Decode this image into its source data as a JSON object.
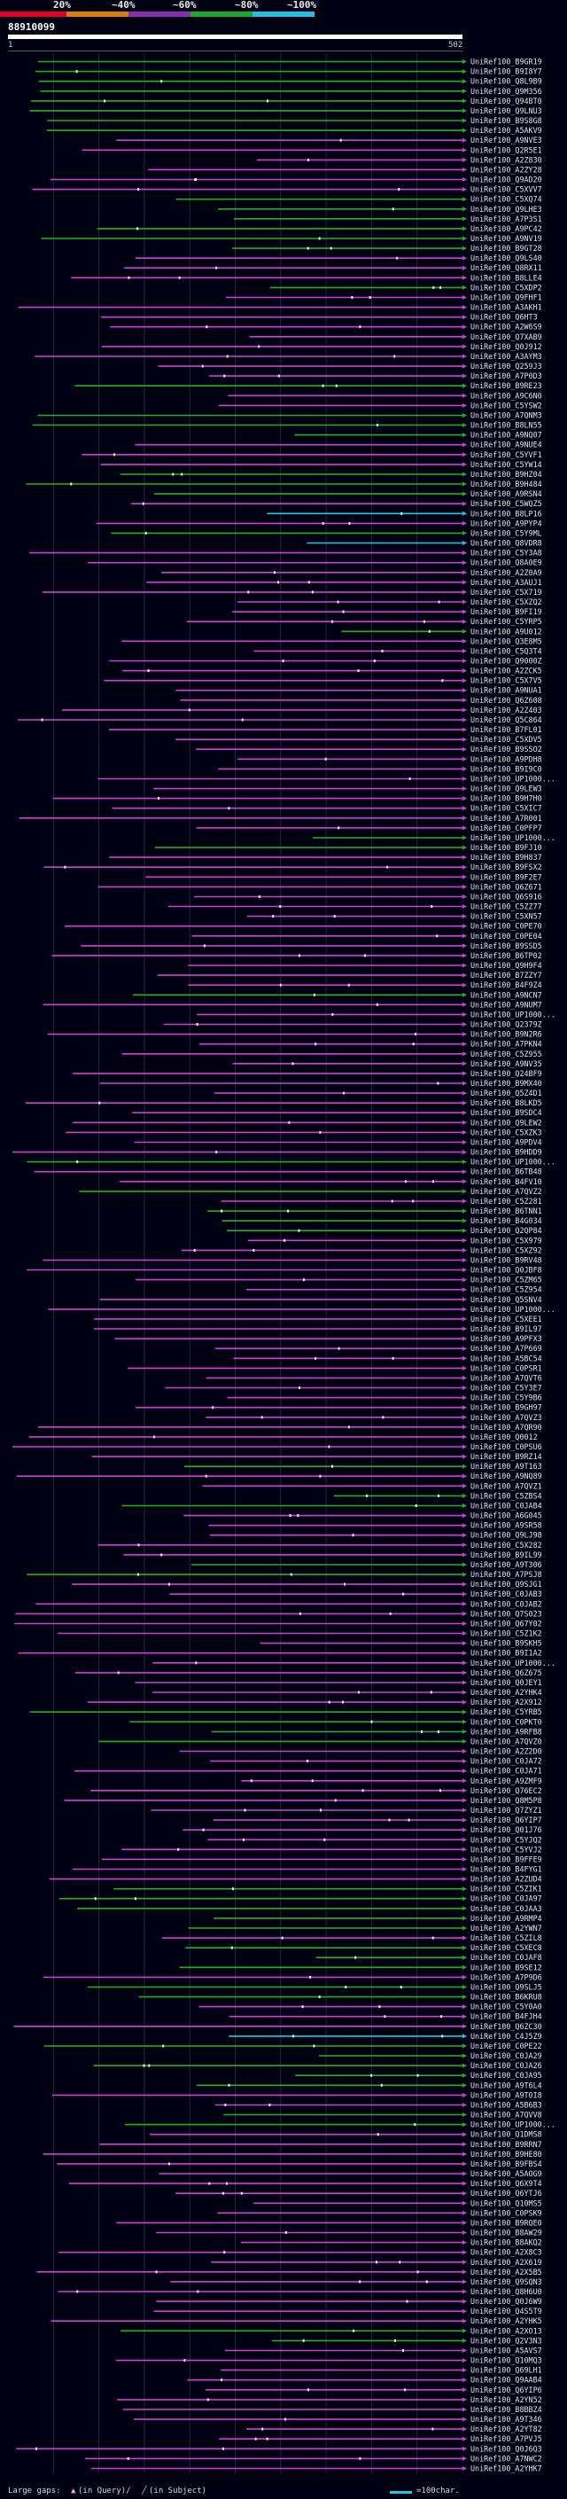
{
  "legend": {
    "labels": [
      "20%",
      "~40%",
      "~60%",
      "~80%",
      "~100%"
    ],
    "colors": [
      "#e0002a",
      "#e07a10",
      "#8a2bb0",
      "#1aa82a",
      "#22c0e0"
    ]
  },
  "query": {
    "id": "88910099",
    "range_start": "1",
    "range_end": "502"
  },
  "colors": {
    "magenta": "#d040d0",
    "green": "#22b022",
    "cyan": "#22c8e0",
    "dot": "#f0f0f0",
    "grid": "#262640"
  },
  "hits": [
    {
      "label": "UniRef100_B9GR19",
      "color": "green"
    },
    {
      "label": "UniRef100_B9I8Y7",
      "color": "green"
    },
    {
      "label": "UniRef100_Q8L9B9",
      "color": "green"
    },
    {
      "label": "UniRef100_Q9M356",
      "color": "green"
    },
    {
      "label": "UniRef100_Q94BT0",
      "color": "green"
    },
    {
      "label": "UniRef100_Q9LNU3",
      "color": "green"
    },
    {
      "label": "UniRef100_B9S8G8",
      "color": "green"
    },
    {
      "label": "UniRef100_A5AKV9",
      "color": "green"
    },
    {
      "label": "UniRef100_A9NVE3",
      "color": "magenta"
    },
    {
      "label": "UniRef100_Q2R5E1",
      "color": "magenta"
    },
    {
      "label": "UniRef100_A2Z830",
      "color": "magenta"
    },
    {
      "label": "UniRef100_A2ZY28",
      "color": "magenta"
    },
    {
      "label": "UniRef100_Q9AD20",
      "color": "magenta"
    },
    {
      "label": "UniRef100_C5XVV7",
      "color": "magenta"
    },
    {
      "label": "UniRef100_C5XQ74",
      "color": "green"
    },
    {
      "label": "UniRef100_Q9LHE3",
      "color": "green"
    },
    {
      "label": "UniRef100_A7P3S1",
      "color": "green"
    },
    {
      "label": "UniRef100_A9PC42",
      "color": "green"
    },
    {
      "label": "UniRef100_A9NV19",
      "color": "green"
    },
    {
      "label": "UniRef100_B9GT28",
      "color": "green"
    },
    {
      "label": "UniRef100_Q9LS40",
      "color": "magenta"
    },
    {
      "label": "UniRef100_Q8RX11",
      "color": "magenta"
    },
    {
      "label": "UniRef100_B8LLE4",
      "color": "magenta"
    },
    {
      "label": "UniRef100_C5XDP2",
      "color": "green"
    },
    {
      "label": "UniRef100_Q9FHF1",
      "color": "magenta"
    },
    {
      "label": "UniRef100_A3AKH1",
      "color": "magenta"
    },
    {
      "label": "UniRef100_Q6HT3",
      "color": "magenta"
    },
    {
      "label": "UniRef100_A2W6S9",
      "color": "magenta"
    },
    {
      "label": "UniRef100_Q7XAB9",
      "color": "magenta"
    },
    {
      "label": "UniRef100_Q0J912",
      "color": "magenta"
    },
    {
      "label": "UniRef100_A3AYM3",
      "color": "magenta"
    },
    {
      "label": "UniRef100_Q259J3",
      "color": "magenta"
    },
    {
      "label": "UniRef100_A7P0D3",
      "color": "magenta"
    },
    {
      "label": "UniRef100_B9RE23",
      "color": "green"
    },
    {
      "label": "UniRef100_A9C6N0",
      "color": "magenta"
    },
    {
      "label": "UniRef100_C5YSW2",
      "color": "magenta"
    },
    {
      "label": "UniRef100_A7QNM3",
      "color": "green"
    },
    {
      "label": "UniRef100_B8LN55",
      "color": "green"
    },
    {
      "label": "UniRef100_A9NQ07",
      "color": "green"
    },
    {
      "label": "UniRef100_A9NUE4",
      "color": "magenta"
    },
    {
      "label": "UniRef100_C5YVF1",
      "color": "magenta"
    },
    {
      "label": "UniRef100_C5YW14",
      "color": "magenta"
    },
    {
      "label": "UniRef100_B9HZ04",
      "color": "green"
    },
    {
      "label": "UniRef100_B9H484",
      "color": "green"
    },
    {
      "label": "UniRef100_A9RSN4",
      "color": "green"
    },
    {
      "label": "UniRef100_C5WQZ5",
      "color": "magenta"
    },
    {
      "label": "UniRef100_B8LP16",
      "color": "cyan"
    },
    {
      "label": "UniRef100_A9PYP4",
      "color": "magenta"
    },
    {
      "label": "UniRef100_C5Y9ML",
      "color": "green"
    },
    {
      "label": "UniRef100_Q8VDR8",
      "color": "cyan"
    },
    {
      "label": "UniRef100_C5Y3A8",
      "color": "magenta"
    },
    {
      "label": "UniRef100_Q8A0E9",
      "color": "magenta"
    },
    {
      "label": "UniRef100_A2Z0A9",
      "color": "magenta"
    },
    {
      "label": "UniRef100_A3AUJ1",
      "color": "magenta"
    },
    {
      "label": "UniRef100_C5X719",
      "color": "magenta"
    },
    {
      "label": "UniRef100_C5XZQ2",
      "color": "magenta"
    },
    {
      "label": "UniRef100_B9FI19",
      "color": "magenta"
    },
    {
      "label": "UniRef100_C5YRP5",
      "color": "magenta"
    },
    {
      "label": "UniRef100_A9U012",
      "color": "green"
    },
    {
      "label": "UniRef100_Q3E8M5",
      "color": "magenta"
    },
    {
      "label": "UniRef100_C5Q3T4",
      "color": "magenta"
    },
    {
      "label": "UniRef100_Q9000Z",
      "color": "magenta"
    },
    {
      "label": "UniRef100_A2ZCK5",
      "color": "magenta"
    },
    {
      "label": "UniRef100_C5X7V5",
      "color": "magenta"
    },
    {
      "label": "UniRef100_A9NUA1",
      "color": "magenta"
    },
    {
      "label": "UniRef100_Q6Z608",
      "color": "magenta"
    },
    {
      "label": "UniRef100_A2Z403",
      "color": "magenta"
    },
    {
      "label": "UniRef100_Q5C864",
      "color": "magenta"
    },
    {
      "label": "UniRef100_B7FL01",
      "color": "magenta"
    },
    {
      "label": "UniRef100_C5XDV5",
      "color": "magenta"
    },
    {
      "label": "UniRef100_B9SSO2",
      "color": "magenta"
    },
    {
      "label": "UniRef100_A9PDH8",
      "color": "magenta"
    },
    {
      "label": "UniRef100_B9I9C0",
      "color": "magenta"
    },
    {
      "label": "UniRef100_UP1000...",
      "color": "magenta"
    },
    {
      "label": "UniRef100_Q9LEW3",
      "color": "magenta"
    },
    {
      "label": "UniRef100_B9H7H0",
      "color": "magenta"
    },
    {
      "label": "UniRef100_C5XIC7",
      "color": "magenta"
    },
    {
      "label": "UniRef100_A7R001",
      "color": "magenta"
    },
    {
      "label": "UniRef100_C0PFP7",
      "color": "magenta"
    },
    {
      "label": "UniRef100_UP1000...",
      "color": "green"
    },
    {
      "label": "UniRef100_B9FJ10",
      "color": "green"
    },
    {
      "label": "UniRef100_B9H837",
      "color": "magenta"
    },
    {
      "label": "UniRef100_B9FSX2",
      "color": "magenta"
    },
    {
      "label": "UniRef100_B9F2E7",
      "color": "magenta"
    },
    {
      "label": "UniRef100_Q6Z671",
      "color": "magenta"
    },
    {
      "label": "UniRef100_Q6S916",
      "color": "magenta"
    },
    {
      "label": "UniRef100_C5ZZ77",
      "color": "magenta"
    },
    {
      "label": "UniRef100_C5XN57",
      "color": "magenta"
    },
    {
      "label": "UniRef100_C0PE70",
      "color": "magenta"
    },
    {
      "label": "UniRef100_C0PE04",
      "color": "magenta"
    },
    {
      "label": "UniRef100_B9SSD5",
      "color": "magenta"
    },
    {
      "label": "UniRef100_B6TP02",
      "color": "magenta"
    },
    {
      "label": "UniRef100_Q9H9F4",
      "color": "magenta"
    },
    {
      "label": "UniRef100_B7ZZY7",
      "color": "magenta"
    },
    {
      "label": "UniRef100_B4F9Z4",
      "color": "magenta"
    },
    {
      "label": "UniRef100_A9NCN7",
      "color": "green"
    },
    {
      "label": "UniRef100_A9NUM7",
      "color": "magenta"
    },
    {
      "label": "UniRef100_UP1000...",
      "color": "magenta"
    },
    {
      "label": "UniRef100_Q2379Z",
      "color": "magenta"
    },
    {
      "label": "UniRef100_B9N2R6",
      "color": "magenta"
    },
    {
      "label": "UniRef100_A7PKN4",
      "color": "magenta"
    },
    {
      "label": "UniRef100_C5Z955",
      "color": "magenta"
    },
    {
      "label": "UniRef100_A9NV35",
      "color": "magenta"
    },
    {
      "label": "UniRef100_Q24BF9",
      "color": "magenta"
    },
    {
      "label": "UniRef100_B9MX40",
      "color": "magenta"
    },
    {
      "label": "UniRef100_Q5Z4D1",
      "color": "magenta"
    },
    {
      "label": "UniRef100_B8LKD5",
      "color": "magenta"
    },
    {
      "label": "UniRef100_B9SDC4",
      "color": "magenta"
    },
    {
      "label": "UniRef100_Q9LEW2",
      "color": "magenta"
    },
    {
      "label": "UniRef100_C5XZK3",
      "color": "magenta"
    },
    {
      "label": "UniRef100_A9PDV4",
      "color": "magenta"
    },
    {
      "label": "UniRef100_B9HDD9",
      "color": "magenta"
    },
    {
      "label": "UniRef100_UP1000...",
      "color": "green"
    },
    {
      "label": "UniRef100_B6TB48",
      "color": "magenta"
    },
    {
      "label": "UniRef100_B4FV10",
      "color": "magenta"
    },
    {
      "label": "UniRef100_A7QVZ2",
      "color": "green"
    },
    {
      "label": "UniRef100_C5Z281",
      "color": "magenta"
    },
    {
      "label": "UniRef100_B6TNN1",
      "color": "green"
    },
    {
      "label": "UniRef100_B4G034",
      "color": "green"
    },
    {
      "label": "UniRef100_Q2QP84",
      "color": "green"
    },
    {
      "label": "UniRef100_C5X979",
      "color": "magenta"
    },
    {
      "label": "UniRef100_C5XZ92",
      "color": "magenta"
    },
    {
      "label": "UniRef100_B9RV48",
      "color": "magenta"
    },
    {
      "label": "UniRef100_Q0JBF8",
      "color": "magenta"
    },
    {
      "label": "UniRef100_C5ZM65",
      "color": "magenta"
    },
    {
      "label": "UniRef100_C5Z954",
      "color": "magenta"
    },
    {
      "label": "UniRef100_Q5SNV4",
      "color": "magenta"
    },
    {
      "label": "UniRef100_UP1000...",
      "color": "magenta"
    },
    {
      "label": "UniRef100_C5XEE1",
      "color": "magenta"
    },
    {
      "label": "UniRef100_B9IL97",
      "color": "magenta"
    },
    {
      "label": "UniRef100_A9PFX3",
      "color": "magenta"
    },
    {
      "label": "UniRef100_A7P669",
      "color": "magenta"
    },
    {
      "label": "UniRef100_A5BC54",
      "color": "magenta"
    },
    {
      "label": "UniRef100_C0PSR1",
      "color": "magenta"
    },
    {
      "label": "UniRef100_A7QVT6",
      "color": "magenta"
    },
    {
      "label": "UniRef100_C5Y3E7",
      "color": "magenta"
    },
    {
      "label": "UniRef100_C5Y9B6",
      "color": "magenta"
    },
    {
      "label": "UniRef100_B9GH97",
      "color": "magenta"
    },
    {
      "label": "UniRef100_A7QVZ3",
      "color": "magenta"
    },
    {
      "label": "UniRef100_A7QR90",
      "color": "magenta"
    },
    {
      "label": "UniRef100_Q0012",
      "color": "magenta"
    },
    {
      "label": "UniRef100_C0PSU6",
      "color": "magenta"
    },
    {
      "label": "UniRef100_B9RZ14",
      "color": "magenta"
    },
    {
      "label": "UniRef100_A9T163",
      "color": "green"
    },
    {
      "label": "UniRef100_A9NQ89",
      "color": "magenta"
    },
    {
      "label": "UniRef100_A7QVZ1",
      "color": "magenta"
    },
    {
      "label": "UniRef100_C5ZBS4",
      "color": "green"
    },
    {
      "label": "UniRef100_C0JAB4",
      "color": "green"
    },
    {
      "label": "UniRef100_A6G045",
      "color": "magenta"
    },
    {
      "label": "UniRef100_A9SR58",
      "color": "magenta"
    },
    {
      "label": "UniRef100_Q9LJ98",
      "color": "magenta"
    },
    {
      "label": "UniRef100_C5X282",
      "color": "magenta"
    },
    {
      "label": "UniRef100_B9IL99",
      "color": "magenta"
    },
    {
      "label": "UniRef100_A9T306",
      "color": "green"
    },
    {
      "label": "UniRef100_A7PSJ8",
      "color": "green"
    },
    {
      "label": "UniRef100_Q9SJG1",
      "color": "magenta"
    },
    {
      "label": "UniRef100_C0JAB3",
      "color": "magenta"
    },
    {
      "label": "UniRef100_C0JAB2",
      "color": "magenta"
    },
    {
      "label": "UniRef100_Q7S023",
      "color": "magenta"
    },
    {
      "label": "UniRef100_Q67Y02",
      "color": "magenta"
    },
    {
      "label": "UniRef100_C5Z1K2",
      "color": "magenta"
    },
    {
      "label": "UniRef100_B9SKH5",
      "color": "magenta"
    },
    {
      "label": "UniRef100_B9I1A2",
      "color": "magenta"
    },
    {
      "label": "UniRef100_UP1000...",
      "color": "magenta"
    },
    {
      "label": "UniRef100_Q6Z675",
      "color": "magenta"
    },
    {
      "label": "UniRef100_Q0JEY1",
      "color": "magenta"
    },
    {
      "label": "UniRef100_A2YHK4",
      "color": "magenta"
    },
    {
      "label": "UniRef100_A2X912",
      "color": "magenta"
    },
    {
      "label": "UniRef100_C5YRB5",
      "color": "green"
    },
    {
      "label": "UniRef100_C0PKT0",
      "color": "green"
    },
    {
      "label": "UniRef100_A9RFB8",
      "color": "green"
    },
    {
      "label": "UniRef100_A7QVZ0",
      "color": "green"
    },
    {
      "label": "UniRef100_A2Z2D0",
      "color": "magenta"
    },
    {
      "label": "UniRef100_C0JA72",
      "color": "magenta"
    },
    {
      "label": "UniRef100_C0JA71",
      "color": "magenta"
    },
    {
      "label": "UniRef100_A9ZMF9",
      "color": "magenta"
    },
    {
      "label": "UniRef100_Q76EC2",
      "color": "magenta"
    },
    {
      "label": "UniRef100_Q8M5P8",
      "color": "magenta"
    },
    {
      "label": "UniRef100_Q7ZYZ1",
      "color": "magenta"
    },
    {
      "label": "UniRef100_Q6YIP7",
      "color": "magenta"
    },
    {
      "label": "UniRef100_Q01J76",
      "color": "magenta"
    },
    {
      "label": "UniRef100_C5YJQ2",
      "color": "magenta"
    },
    {
      "label": "UniRef100_C5YVJ2",
      "color": "magenta"
    },
    {
      "label": "UniRef100_B9FFE9",
      "color": "magenta"
    },
    {
      "label": "UniRef100_B4FYG1",
      "color": "magenta"
    },
    {
      "label": "UniRef100_A2ZUD4",
      "color": "magenta"
    },
    {
      "label": "UniRef100_C5ZIK1",
      "color": "green"
    },
    {
      "label": "UniRef100_C0JA97",
      "color": "green"
    },
    {
      "label": "UniRef100_C0JAA3",
      "color": "green"
    },
    {
      "label": "UniRef100_A9RMP4",
      "color": "green"
    },
    {
      "label": "UniRef100_A2YWN7",
      "color": "green"
    },
    {
      "label": "UniRef100_C5ZIL8",
      "color": "magenta"
    },
    {
      "label": "UniRef100_C5XEC8",
      "color": "green"
    },
    {
      "label": "UniRef100_C0JAF8",
      "color": "green"
    },
    {
      "label": "UniRef100_B9SE12",
      "color": "green"
    },
    {
      "label": "UniRef100_A7P9D6",
      "color": "magenta"
    },
    {
      "label": "UniRef100_Q9SLJ5",
      "color": "green"
    },
    {
      "label": "UniRef100_B6KRU8",
      "color": "green"
    },
    {
      "label": "UniRef100_C5Y0A0",
      "color": "magenta"
    },
    {
      "label": "UniRef100_B4FJH4",
      "color": "magenta"
    },
    {
      "label": "UniRef100_Q6ZC30",
      "color": "magenta"
    },
    {
      "label": "UniRef100_C4J5Z9",
      "color": "cyan"
    },
    {
      "label": "UniRef100_C0PE22",
      "color": "green"
    },
    {
      "label": "UniRef100_C0JA29",
      "color": "green"
    },
    {
      "label": "UniRef100_C0JA26",
      "color": "green"
    },
    {
      "label": "UniRef100_C0JA95",
      "color": "green"
    },
    {
      "label": "UniRef100_A9T6L4",
      "color": "green"
    },
    {
      "label": "UniRef100_A9T0I8",
      "color": "magenta"
    },
    {
      "label": "UniRef100_A5B6B3",
      "color": "magenta"
    },
    {
      "label": "UniRef100_A7QVV8",
      "color": "green"
    },
    {
      "label": "UniRef100_UP1000...",
      "color": "green"
    },
    {
      "label": "UniRef100_Q1DMS8",
      "color": "magenta"
    },
    {
      "label": "UniRef100_B9RRN7",
      "color": "magenta"
    },
    {
      "label": "UniRef100_B9HE80",
      "color": "magenta"
    },
    {
      "label": "UniRef100_B9FBS4",
      "color": "magenta"
    },
    {
      "label": "UniRef100_A5AOG9",
      "color": "magenta"
    },
    {
      "label": "UniRef100_Q6X9T4",
      "color": "magenta"
    },
    {
      "label": "UniRef100_Q6YTJ6",
      "color": "magenta"
    },
    {
      "label": "UniRef100_Q10MS5",
      "color": "magenta"
    },
    {
      "label": "UniRef100_C0PSK9",
      "color": "magenta"
    },
    {
      "label": "UniRef100_B9RQE0",
      "color": "magenta"
    },
    {
      "label": "UniRef100_B8AW29",
      "color": "magenta"
    },
    {
      "label": "UniRef100_B8AKQ2",
      "color": "magenta"
    },
    {
      "label": "UniRef100_A2X8C3",
      "color": "magenta"
    },
    {
      "label": "UniRef100_A2X619",
      "color": "magenta"
    },
    {
      "label": "UniRef100_A2X5B5",
      "color": "magenta"
    },
    {
      "label": "UniRef100_Q9SQN3",
      "color": "magenta"
    },
    {
      "label": "UniRef100_Q8H6U0",
      "color": "magenta"
    },
    {
      "label": "UniRef100_Q0J6W9",
      "color": "magenta"
    },
    {
      "label": "UniRef100_Q4S5T9",
      "color": "magenta"
    },
    {
      "label": "UniRef100_A2YHK5",
      "color": "magenta"
    },
    {
      "label": "UniRef100_A2XO13",
      "color": "green"
    },
    {
      "label": "UniRef100_Q2V3N3",
      "color": "green"
    },
    {
      "label": "UniRef100_A5AVS7",
      "color": "magenta"
    },
    {
      "label": "UniRef100_Q10MQ3",
      "color": "magenta"
    },
    {
      "label": "UniRef100_Q69LH1",
      "color": "magenta"
    },
    {
      "label": "UniRef100_Q9AAB4",
      "color": "magenta"
    },
    {
      "label": "UniRef100_Q6YIP6",
      "color": "magenta"
    },
    {
      "label": "UniRef100_A2YN52",
      "color": "magenta"
    },
    {
      "label": "UniRef100_B8BBZ4",
      "color": "magenta"
    },
    {
      "label": "UniRef100_A9T346",
      "color": "magenta"
    },
    {
      "label": "UniRef100_A2YT82",
      "color": "magenta"
    },
    {
      "label": "UniRef100_A7PVJ5",
      "color": "magenta"
    },
    {
      "label": "UniRef100_Q0J6Q3",
      "color": "magenta"
    },
    {
      "label": "UniRef100_A7NWC2",
      "color": "magenta"
    },
    {
      "label": "UniRef100_A2YHK7",
      "color": "magenta"
    }
  ],
  "footer": {
    "gap_label": "Large gaps:",
    "in_query": "(in Query)/",
    "in_subject": "(in Subject)",
    "scale_label": "=100char."
  }
}
